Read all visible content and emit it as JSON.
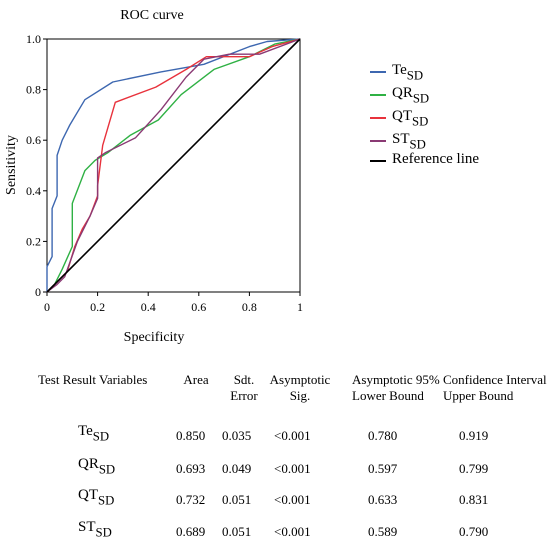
{
  "chart_data": {
    "type": "line",
    "title": "ROC curve",
    "xlabel": "Specificity",
    "ylabel": "Sensitivity",
    "xlim": [
      0,
      1
    ],
    "ylim": [
      0,
      1
    ],
    "xticks": [
      "0",
      "0.2",
      "0.4",
      "0.6",
      "0.8",
      "1"
    ],
    "yticks": [
      "0",
      "0.2",
      "0.4",
      "0.6",
      "0.8",
      "1.0"
    ],
    "grid": false,
    "legend_position": "right",
    "series": [
      {
        "name": "Te",
        "sub": "SD",
        "color": "#3d67b0",
        "x": [
          0,
          0,
          0.02,
          0.02,
          0.04,
          0.04,
          0.06,
          0.09,
          0.15,
          0.26,
          0.45,
          0.62,
          0.8,
          0.87,
          1
        ],
        "y": [
          0,
          0.1,
          0.14,
          0.33,
          0.38,
          0.54,
          0.6,
          0.66,
          0.76,
          0.83,
          0.87,
          0.9,
          0.97,
          0.99,
          1
        ]
      },
      {
        "name": "QR",
        "sub": "SD",
        "color": "#2fb144",
        "x": [
          0,
          0.03,
          0.06,
          0.1,
          0.1,
          0.15,
          0.19,
          0.24,
          0.33,
          0.44,
          0.53,
          0.66,
          0.8,
          0.9,
          1
        ],
        "y": [
          0,
          0.03,
          0.09,
          0.18,
          0.35,
          0.48,
          0.52,
          0.55,
          0.62,
          0.68,
          0.78,
          0.88,
          0.93,
          0.98,
          1
        ]
      },
      {
        "name": "QT",
        "sub": "SD",
        "color": "#e8323c",
        "x": [
          0,
          0.04,
          0.08,
          0.11,
          0.14,
          0.17,
          0.2,
          0.2,
          0.22,
          0.27,
          0.43,
          0.55,
          0.63,
          0.8,
          0.89,
          1
        ],
        "y": [
          0,
          0.04,
          0.08,
          0.18,
          0.25,
          0.3,
          0.38,
          0.42,
          0.58,
          0.75,
          0.81,
          0.88,
          0.93,
          0.93,
          0.97,
          1
        ]
      },
      {
        "name": "ST",
        "sub": "SD",
        "color": "#8a3a74",
        "x": [
          0,
          0.04,
          0.07,
          0.12,
          0.17,
          0.2,
          0.2,
          0.23,
          0.35,
          0.45,
          0.55,
          0.62,
          0.72,
          0.84,
          1
        ],
        "y": [
          0,
          0.03,
          0.06,
          0.2,
          0.3,
          0.37,
          0.53,
          0.55,
          0.61,
          0.72,
          0.85,
          0.92,
          0.94,
          0.94,
          1
        ]
      },
      {
        "name": "Reference line",
        "sub": "",
        "color": "#000000",
        "x": [
          0,
          1
        ],
        "y": [
          0,
          1
        ]
      }
    ]
  },
  "table": {
    "headers": {
      "variables": "Test Result Variables",
      "area": "Area",
      "error_1": "Sdt.",
      "error_2": "Error",
      "sig_1": "Asymptotic",
      "sig_2": "Sig.",
      "ci_title": "Asymptotic 95% Confidence Interval",
      "lower": "Lower Bound",
      "upper": "Upper Bound"
    },
    "rows": [
      {
        "var": "Te",
        "sub": "SD",
        "area": "0.850",
        "error": "0.035",
        "sig": "<0.001",
        "lower": "0.780",
        "upper": "0.919"
      },
      {
        "var": "QR",
        "sub": "SD",
        "area": "0.693",
        "error": "0.049",
        "sig": "<0.001",
        "lower": "0.597",
        "upper": "0.799"
      },
      {
        "var": "QT",
        "sub": "SD",
        "area": "0.732",
        "error": "0.051",
        "sig": "<0.001",
        "lower": "0.633",
        "upper": "0.831"
      },
      {
        "var": "ST",
        "sub": "SD",
        "area": "0.689",
        "error": "0.051",
        "sig": "<0.001",
        "lower": "0.589",
        "upper": "0.790"
      }
    ]
  }
}
